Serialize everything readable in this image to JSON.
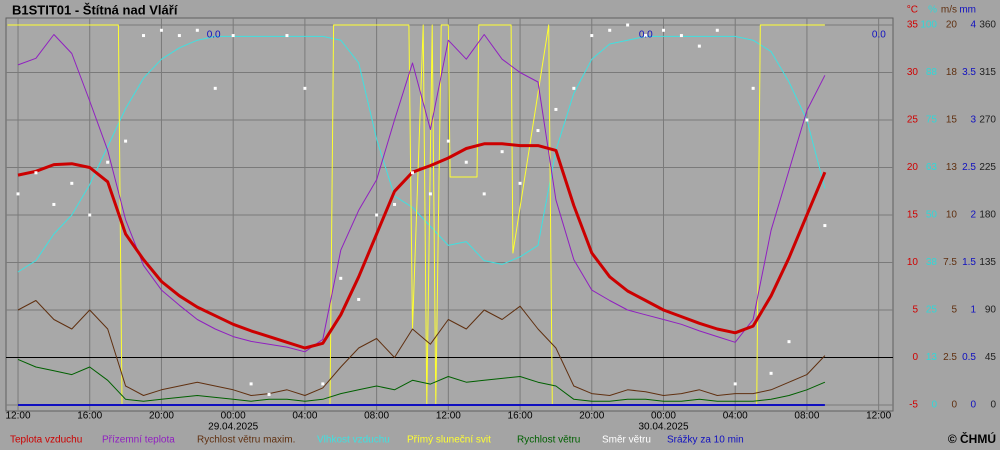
{
  "chart_data": {
    "type": "line",
    "title": "B1STIT01 - Štítná nad Vláří",
    "credit": "© ČHMÚ",
    "xlim": [
      11.33,
      60.8
    ],
    "xticks": [
      {
        "value": 12,
        "label": "12:00"
      },
      {
        "value": 16,
        "label": "16:00"
      },
      {
        "value": 20,
        "label": "20:00"
      },
      {
        "value": 24,
        "label": "00:00"
      },
      {
        "value": 28,
        "label": "04:00"
      },
      {
        "value": 32,
        "label": "08:00"
      },
      {
        "value": 36,
        "label": "12:00"
      },
      {
        "value": 40,
        "label": "16:00"
      },
      {
        "value": 44,
        "label": "20:00"
      },
      {
        "value": 48,
        "label": "00:00"
      },
      {
        "value": 52,
        "label": "04:00"
      },
      {
        "value": 56,
        "label": "08:00"
      },
      {
        "value": 60,
        "label": "12:00"
      }
    ],
    "x_date_labels": [
      {
        "value": 24,
        "label": "29.04.2025"
      },
      {
        "value": 48,
        "label": "30.04.2025"
      }
    ],
    "grid": true,
    "axes": [
      {
        "id": "temp",
        "unit": "°C",
        "color": "#d00000",
        "lim": [
          -5,
          35
        ],
        "ticks": [
          -5,
          0,
          5,
          10,
          15,
          20,
          25,
          30,
          35
        ]
      },
      {
        "id": "pct",
        "unit": "%",
        "color": "#30d8d8",
        "lim": [
          0,
          100
        ],
        "ticks": [
          0,
          {
            "value": 12.5,
            "label": "13"
          },
          25,
          {
            "value": 37.5,
            "label": "38"
          },
          50,
          {
            "value": 62.5,
            "label": "63"
          },
          75,
          {
            "value": 87.5,
            "label": "88"
          },
          100
        ]
      },
      {
        "id": "wind",
        "unit": "m/s",
        "color": "#603010",
        "lim": [
          0,
          20
        ],
        "ticks": [
          0,
          2.5,
          5,
          7.5,
          10,
          {
            "value": 12.5,
            "label": "13"
          },
          15,
          {
            "value": 17.5,
            "label": "18"
          },
          20
        ]
      },
      {
        "id": "mm",
        "unit": "mm",
        "color": "#1010c0",
        "lim": [
          0,
          4
        ],
        "ticks": [
          0,
          0.5,
          1,
          1.5,
          2,
          2.5,
          3,
          3.5,
          4
        ]
      },
      {
        "id": "deg",
        "color": "#202020",
        "lim": [
          0,
          360
        ],
        "ticks": [
          0,
          45,
          90,
          135,
          180,
          225,
          270,
          315,
          360
        ]
      }
    ],
    "x": [
      12,
      13,
      14,
      15,
      16,
      17,
      18,
      19,
      20,
      21,
      22,
      23,
      24,
      25,
      26,
      27,
      28,
      29,
      30,
      31,
      32,
      33,
      34,
      35,
      36,
      37,
      38,
      39,
      40,
      41,
      42,
      43,
      44,
      45,
      46,
      47,
      48,
      49,
      50,
      51,
      52,
      53,
      54,
      55,
      56,
      57
    ],
    "series": [
      {
        "name": "Vlhkost vzduchu",
        "color": "#40e0e0",
        "axis": "pct",
        "width": 1,
        "values": [
          35,
          38,
          45,
          50,
          58,
          68,
          78,
          86,
          91,
          94,
          96,
          97,
          97,
          97,
          97,
          97,
          97,
          97,
          96,
          90,
          70,
          55,
          52,
          47,
          42,
          43,
          38,
          37,
          39,
          42,
          67,
          82,
          91,
          95,
          96,
          97,
          97,
          97,
          97,
          97,
          97,
          96,
          93,
          85,
          75,
          57
        ]
      },
      {
        "name": "Přímý sluneční svit",
        "color": "#ffff30",
        "axis": "pct",
        "width": 1,
        "x": [
          11.4,
          17.6,
          17.8,
          29.4,
          29.6,
          33.8,
          34.0,
          34.6,
          34.8,
          35.1,
          35.3,
          35.6,
          36.0,
          36.1,
          37.6,
          37.7,
          39.5,
          39.6,
          41.6,
          41.8,
          53.2,
          53.4,
          57
        ],
        "values": [
          100,
          100,
          0,
          0,
          100,
          100,
          20,
          100,
          0,
          100,
          0,
          100,
          100,
          60,
          60,
          100,
          100,
          40,
          100,
          0,
          0,
          100,
          100
        ]
      },
      {
        "name": "Rychlost větru maxim.",
        "color": "#603010",
        "axis": "wind",
        "width": 1,
        "values": [
          5,
          5.5,
          4.5,
          4,
          5,
          4,
          1,
          0.5,
          0.8,
          1,
          1.2,
          1,
          0.8,
          0.5,
          0.6,
          0.8,
          0.5,
          0.9,
          2,
          3,
          3.5,
          2.5,
          4,
          3.2,
          4.5,
          4,
          5,
          4.5,
          5.2,
          4,
          3,
          1,
          0.6,
          0.5,
          0.8,
          0.7,
          0.5,
          0.6,
          0.8,
          0.5,
          0.6,
          0.6,
          0.8,
          1.2,
          1.6,
          2.6
        ]
      },
      {
        "name": "Rychlost větru",
        "color": "#006000",
        "axis": "wind",
        "width": 1,
        "values": [
          2.4,
          2,
          1.8,
          1.6,
          2,
          1.3,
          0.3,
          0.2,
          0.3,
          0.4,
          0.5,
          0.4,
          0.3,
          0.2,
          0.3,
          0.3,
          0.2,
          0.3,
          0.6,
          0.8,
          1,
          0.8,
          1.3,
          1.1,
          1.5,
          1.2,
          1.3,
          1.4,
          1.5,
          1.2,
          1,
          0.3,
          0.2,
          0.2,
          0.3,
          0.3,
          0.2,
          0.2,
          0.3,
          0.2,
          0.2,
          0.2,
          0.3,
          0.5,
          0.8,
          1.2
        ]
      },
      {
        "name": "Přízemní teplota",
        "color": "#9020c0",
        "axis": "temp",
        "width": 1,
        "values": [
          30.8,
          31.5,
          34,
          32,
          27,
          21.8,
          14.5,
          9.7,
          7.1,
          5.5,
          4,
          3,
          2.2,
          1.7,
          1.4,
          1.1,
          0.6,
          1.9,
          11.3,
          15.5,
          18.7,
          25,
          31,
          24,
          33.4,
          31.4,
          34,
          31.4,
          30,
          29,
          16.6,
          10.3,
          7.1,
          6,
          5,
          4.5,
          4,
          3.5,
          2.8,
          2.2,
          1.6,
          4,
          13.4,
          19.7,
          26,
          29.7
        ]
      },
      {
        "name": "Teplota vzduchu",
        "color": "#cc0000",
        "axis": "temp",
        "width": 3,
        "values": [
          19.2,
          19.6,
          20.3,
          20.4,
          20.0,
          18.5,
          13,
          10.3,
          8.0,
          6.5,
          5.3,
          4.4,
          3.5,
          2.8,
          2.2,
          1.6,
          1.0,
          1.5,
          4.5,
          8.5,
          13,
          17.5,
          19.5,
          20.2,
          21.0,
          22.0,
          22.5,
          22.5,
          22.3,
          22.3,
          21.8,
          16,
          11,
          8.5,
          7.0,
          6.0,
          5.0,
          4.3,
          3.6,
          3.0,
          2.6,
          3.3,
          6.5,
          10.5,
          15,
          19.5
        ]
      },
      {
        "name": "Směr větru",
        "color": "#ffffff",
        "axis": "deg",
        "style": "dots",
        "values": [
          200,
          220,
          190,
          210,
          180,
          230,
          250,
          350,
          355,
          350,
          355,
          300,
          350,
          20,
          10,
          350,
          300,
          20,
          120,
          100,
          180,
          190,
          220,
          200,
          250,
          230,
          200,
          240,
          210,
          260,
          280,
          300,
          350,
          355,
          360,
          350,
          355,
          350,
          340,
          355,
          20,
          300,
          30,
          60,
          270,
          170
        ]
      },
      {
        "name": "Srážky za 10 min",
        "color": "#1010c0",
        "axis": "mm",
        "width": 2,
        "values": [
          0,
          0,
          0,
          0,
          0,
          0,
          0,
          0,
          0,
          0,
          0,
          0,
          0,
          0,
          0,
          0,
          0,
          0,
          0,
          0,
          0,
          0,
          0,
          0,
          0,
          0,
          0,
          0,
          0,
          0,
          0,
          0,
          0,
          0,
          0,
          0,
          0,
          0,
          0,
          0,
          0,
          0,
          0,
          0,
          0,
          0
        ]
      }
    ],
    "legend_order": [
      5,
      4,
      2,
      0,
      1,
      3,
      6,
      7
    ],
    "annotations": [
      {
        "x": 23.3,
        "text": "0.0"
      },
      {
        "x": 47.4,
        "text": "0.0"
      },
      {
        "x": 60.4,
        "text": "0.0"
      }
    ]
  }
}
